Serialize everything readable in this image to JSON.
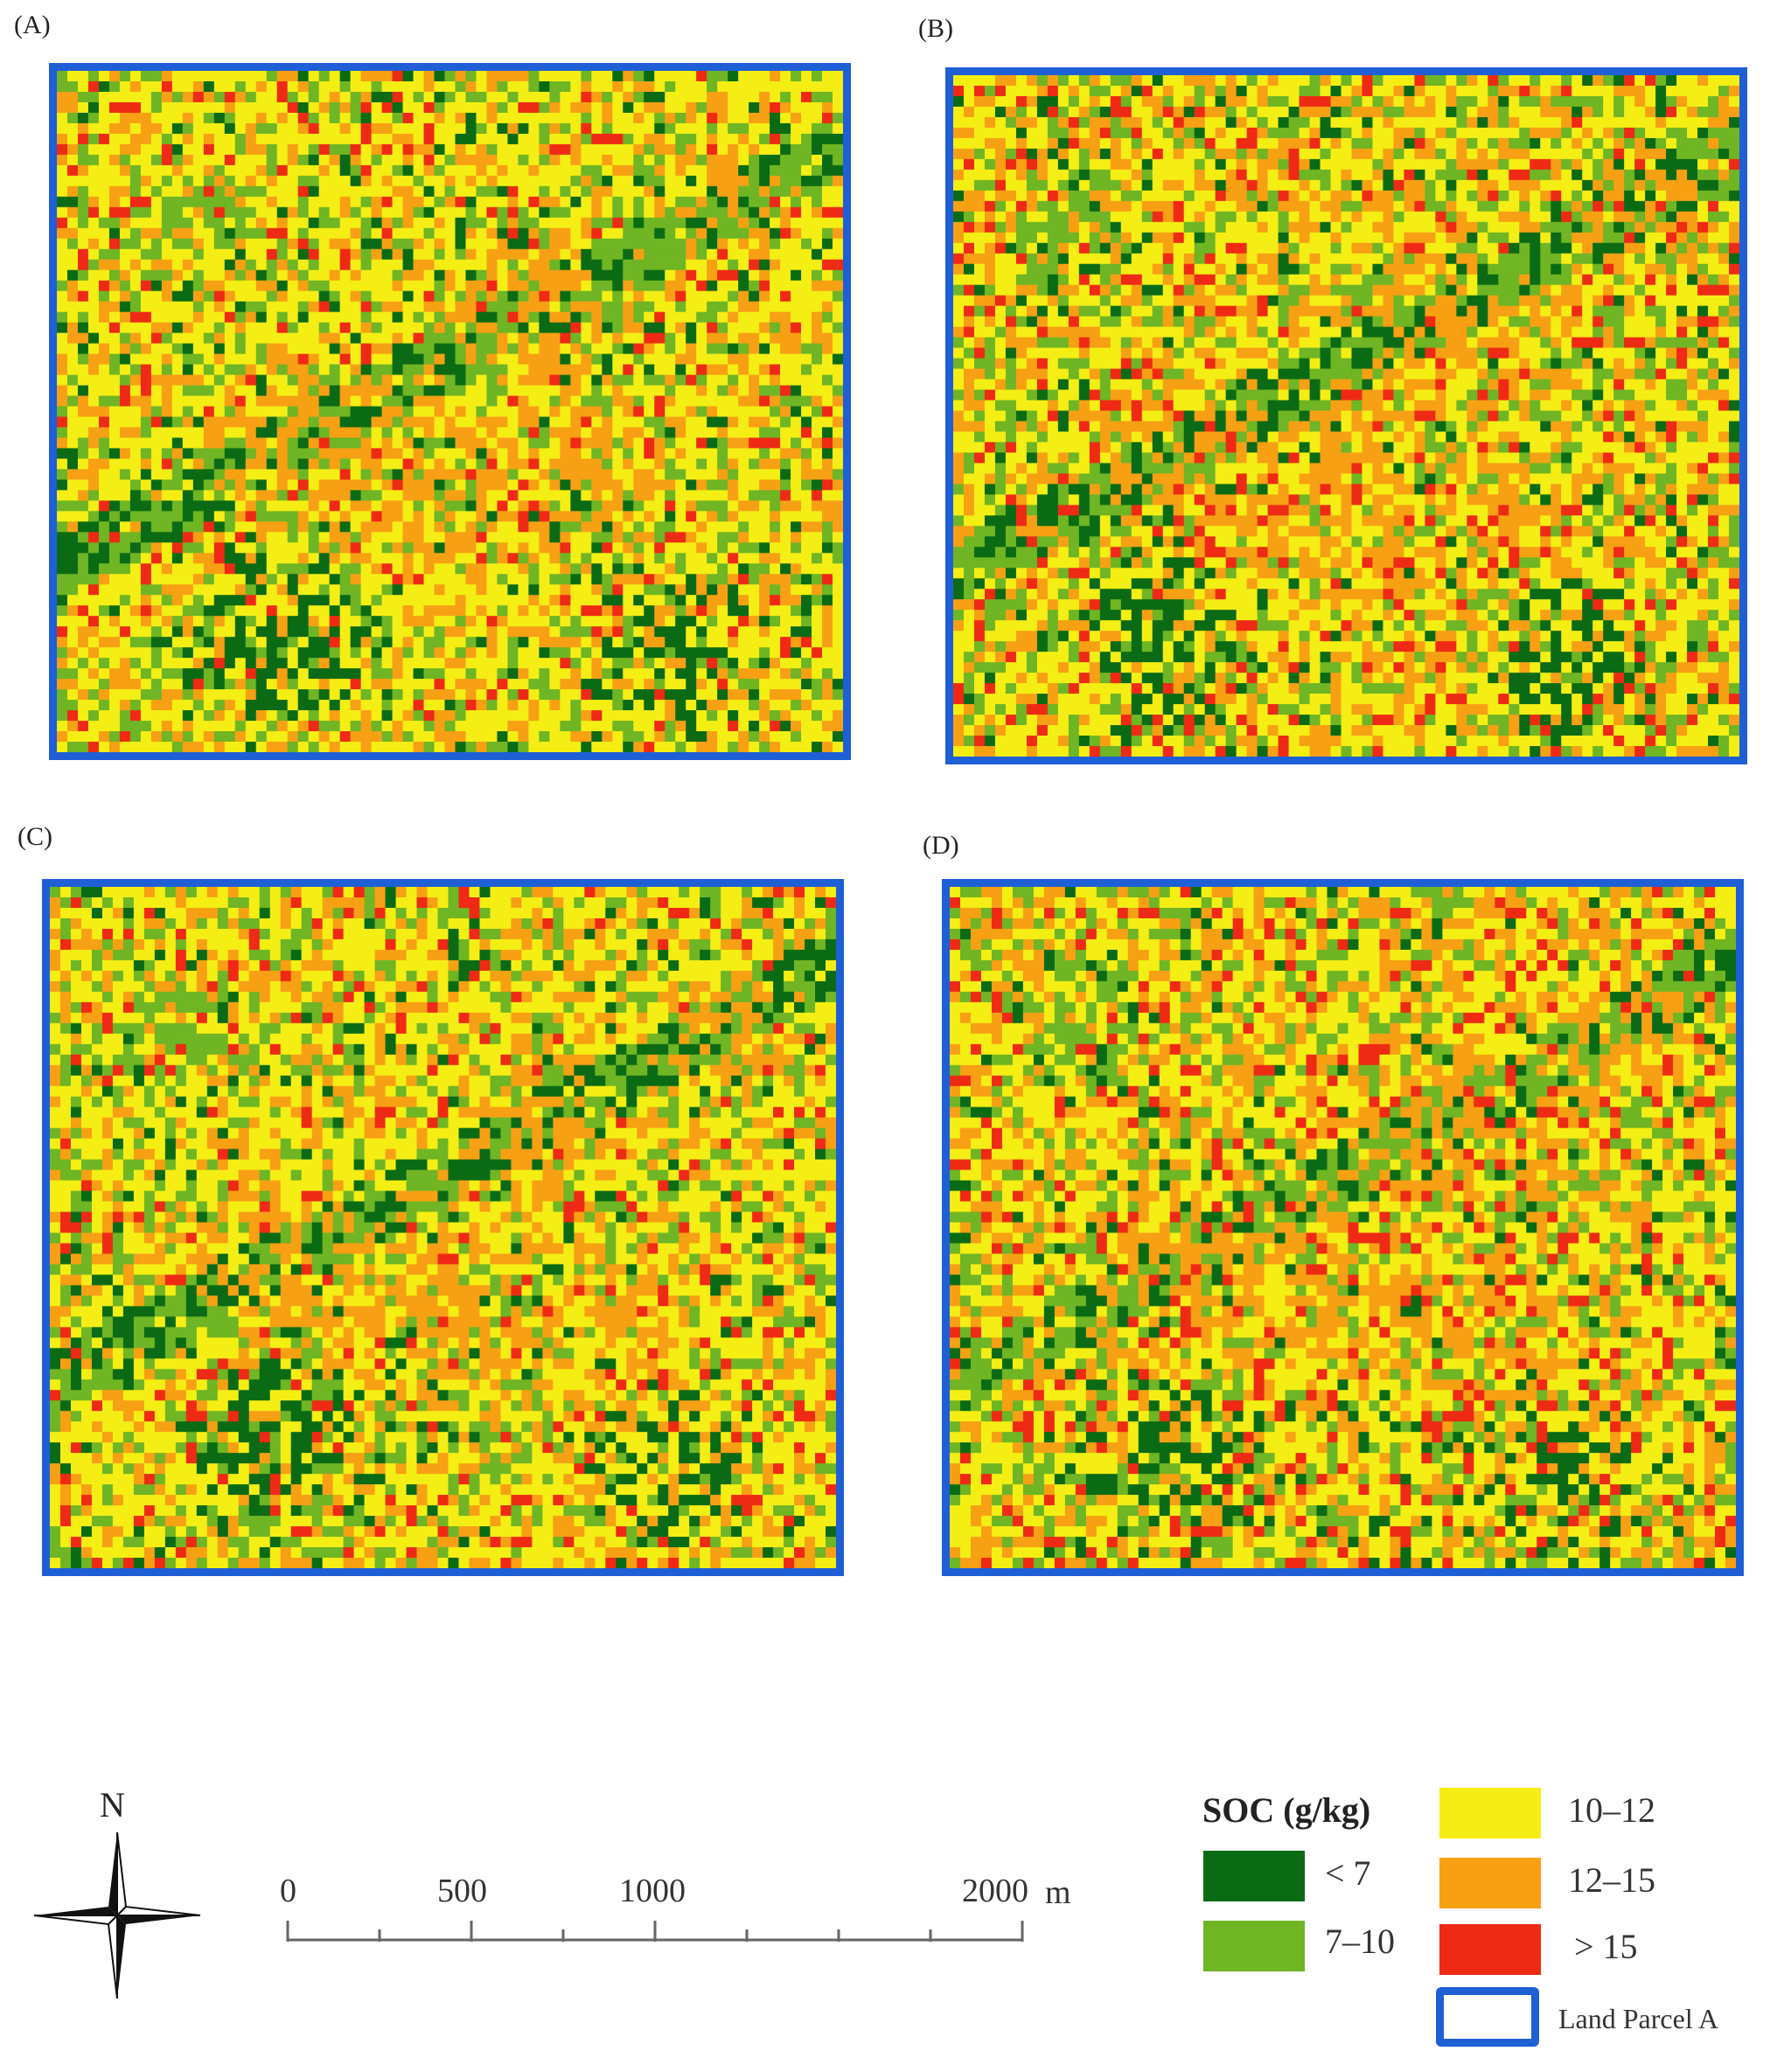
{
  "panels": [
    {
      "label": "(A)",
      "seed": 11,
      "bias": 0.0
    },
    {
      "label": "(B)",
      "seed": 23,
      "bias": 0.1
    },
    {
      "label": "(C)",
      "seed": 37,
      "bias": 0.03
    },
    {
      "label": "(D)",
      "seed": 53,
      "bias": 0.16
    }
  ],
  "legend": {
    "title": "SOC (g/kg)",
    "classes": [
      {
        "label": "< 7",
        "color": "#0b6b14"
      },
      {
        "label": "7–10",
        "color": "#6fb524"
      },
      {
        "label": "10–12",
        "color": "#f5ee14"
      },
      {
        "label": "12–15",
        "color": "#f7a014"
      },
      {
        "label": "> 15",
        "color": "#ee2a14"
      }
    ],
    "parcel_label": "Land Parcel A",
    "parcel_color": "#1f5fd6"
  },
  "scale_bar": {
    "ticks": [
      "0",
      "500",
      "1000",
      "2000"
    ],
    "unit": "m"
  },
  "north_arrow": {
    "label": "N"
  }
}
